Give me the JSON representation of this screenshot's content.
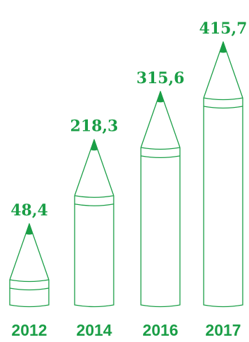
{
  "colors": {
    "accent": "#1a9e46",
    "stroke": "#1a9e46",
    "background": "#ffffff"
  },
  "chart_data": {
    "type": "bar",
    "style": "pencil-shaped bars",
    "categories": [
      "2012",
      "2014",
      "2016",
      "2017"
    ],
    "values": [
      48.4,
      218.3,
      315.6,
      415.7
    ],
    "value_labels": [
      "48,4",
      "218,3",
      "315,6",
      "415,7"
    ],
    "title": "",
    "xlabel": "",
    "ylabel": "",
    "grid": false,
    "legend": "none"
  }
}
